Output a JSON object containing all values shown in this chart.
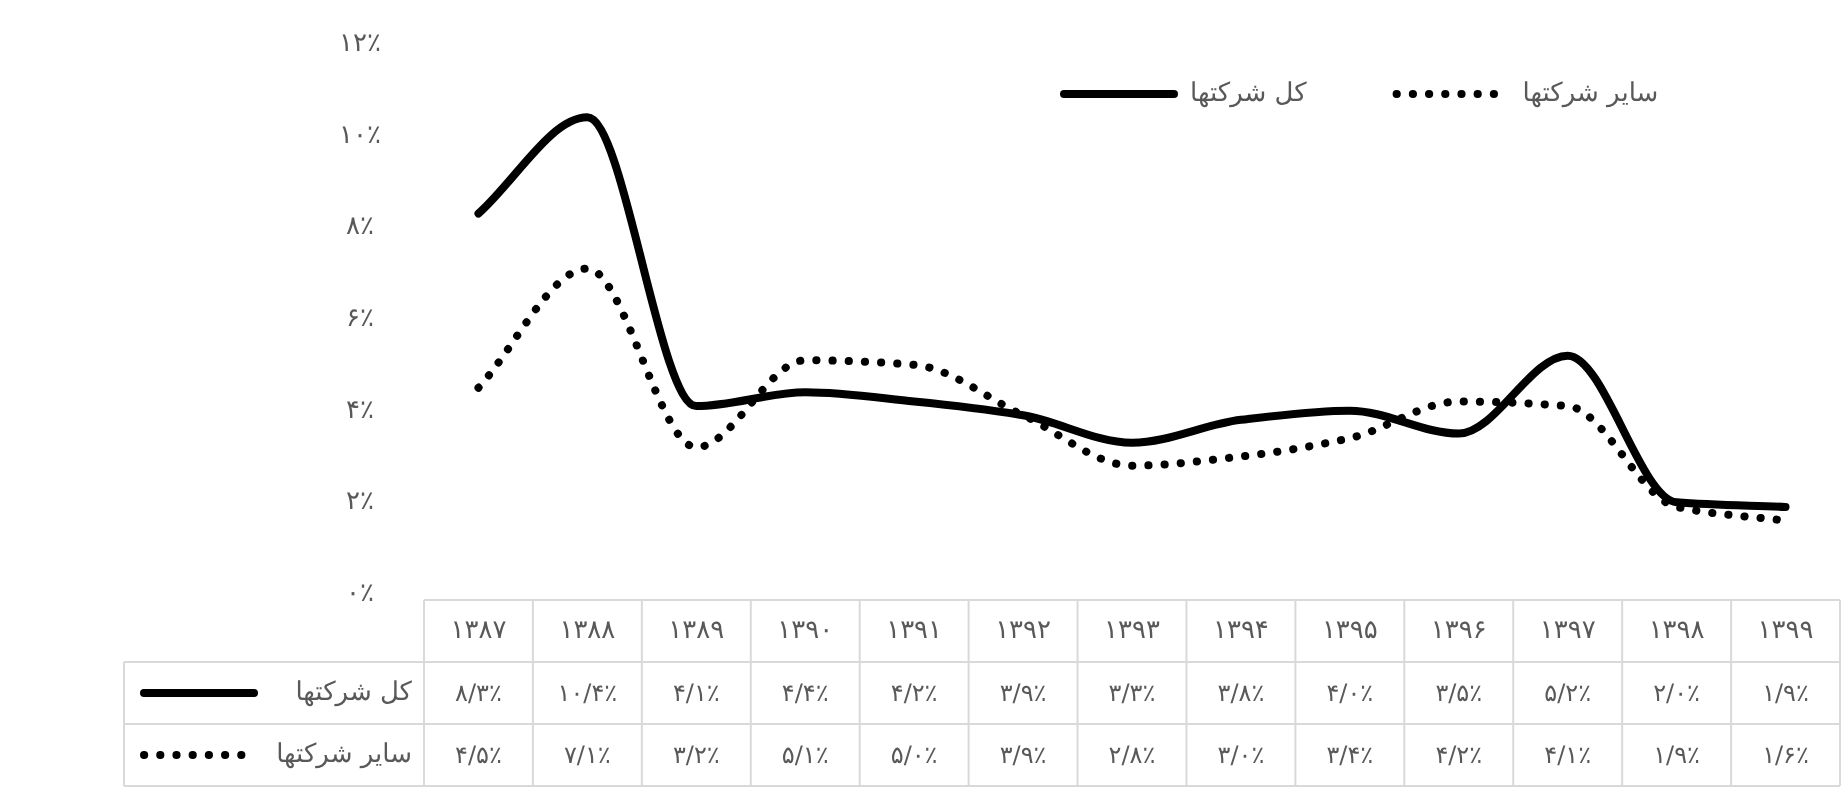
{
  "chart_data": {
    "type": "line",
    "categories": [
      "۱۳۸۷",
      "۱۳۸۸",
      "۱۳۸۹",
      "۱۳۹۰",
      "۱۳۹۱",
      "۱۳۹۲",
      "۱۳۹۳",
      "۱۳۹۴",
      "۱۳۹۵",
      "۱۳۹۶",
      "۱۳۹۷",
      "۱۳۹۸",
      "۱۳۹۹"
    ],
    "series": [
      {
        "name": "کل شرکتها",
        "color": "#000000",
        "line_style": "solid",
        "values": [
          8.3,
          10.4,
          4.1,
          4.4,
          4.2,
          3.9,
          3.3,
          3.8,
          4.0,
          3.5,
          5.2,
          2.0,
          1.9
        ],
        "value_labels": [
          "۸/۳٪",
          "۱۰/۴٪",
          "۴/۱٪",
          "۴/۴٪",
          "۴/۲٪",
          "۳/۹٪",
          "۳/۳٪",
          "۳/۸٪",
          "۴/۰٪",
          "۳/۵٪",
          "۵/۲٪",
          "۲/۰٪",
          "۱/۹٪"
        ]
      },
      {
        "name": "سایر شرکتها",
        "color": "#000000",
        "line_style": "dotted",
        "values": [
          4.5,
          7.1,
          3.2,
          5.1,
          5.0,
          3.9,
          2.8,
          3.0,
          3.4,
          4.2,
          4.1,
          1.9,
          1.6
        ],
        "value_labels": [
          "۴/۵٪",
          "۷/۱٪",
          "۳/۲٪",
          "۵/۱٪",
          "۵/۰٪",
          "۳/۹٪",
          "۲/۸٪",
          "۳/۰٪",
          "۳/۴٪",
          "۴/۲٪",
          "۴/۱٪",
          "۱/۹٪",
          "۱/۶٪"
        ]
      }
    ],
    "ylim": [
      0,
      12
    ],
    "yticks": [
      {
        "value": 0,
        "label": "۰٪"
      },
      {
        "value": 2,
        "label": "۲٪"
      },
      {
        "value": 4,
        "label": "۴٪"
      },
      {
        "value": 6,
        "label": "۶٪"
      },
      {
        "value": 8,
        "label": "۸٪"
      },
      {
        "value": 10,
        "label": "۱۰٪"
      },
      {
        "value": 12,
        "label": "۱۲٪"
      }
    ],
    "grid": false,
    "legend": "top"
  }
}
